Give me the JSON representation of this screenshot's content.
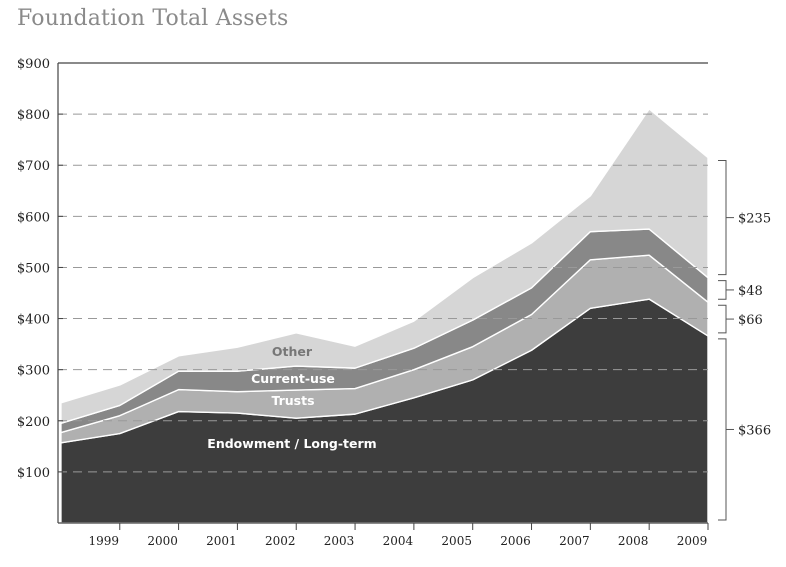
{
  "chart_data": {
    "type": "area",
    "title": "Foundation Total Assets",
    "xlabel": "",
    "ylabel": "",
    "ylim": [
      0,
      900
    ],
    "y_ticks": [
      "$100",
      "$200",
      "$300",
      "$400",
      "$500",
      "$600",
      "$700",
      "$800",
      "$900"
    ],
    "y_tick_values": [
      100,
      200,
      300,
      400,
      500,
      600,
      700,
      800,
      900
    ],
    "categories": [
      "1999",
      "2000",
      "2001",
      "2002",
      "2003",
      "2004",
      "2005",
      "2006",
      "2007",
      "2008",
      "2009"
    ],
    "x": [
      1998,
      1999,
      2000,
      2001,
      2002,
      2003,
      2004,
      2005,
      2006,
      2007,
      2008,
      2009
    ],
    "stacked": true,
    "grid": "dashed horizontal",
    "series": [
      {
        "name": "Endowment / Long-term",
        "color": "#3d3d3d",
        "values": [
          157,
          175,
          218,
          215,
          205,
          213,
          245,
          280,
          338,
          420,
          438,
          366
        ]
      },
      {
        "name": "Trusts",
        "color": "#b0b0b0",
        "values": [
          20,
          35,
          43,
          42,
          55,
          50,
          55,
          65,
          70,
          95,
          86,
          66
        ]
      },
      {
        "name": "Current-use",
        "color": "#888888",
        "values": [
          18,
          20,
          36,
          40,
          47,
          40,
          42,
          52,
          52,
          55,
          51,
          48
        ]
      },
      {
        "name": "Other",
        "color": "#d6d6d6",
        "values": [
          40,
          40,
          30,
          47,
          65,
          43,
          53,
          83,
          88,
          70,
          235,
          235
        ]
      }
    ],
    "annotations": [
      {
        "label": "$235",
        "from": 480,
        "to": 715
      },
      {
        "label": "$48",
        "from": 432,
        "to": 480
      },
      {
        "label": "$66",
        "from": 366,
        "to": 432
      },
      {
        "label": "$366",
        "from": 0,
        "to": 366
      }
    ]
  },
  "colors": {
    "title": "#8a8a8a",
    "axis": "#444444",
    "grid": "#999999",
    "white_text": "#ffffff",
    "other_label": "#777777"
  }
}
